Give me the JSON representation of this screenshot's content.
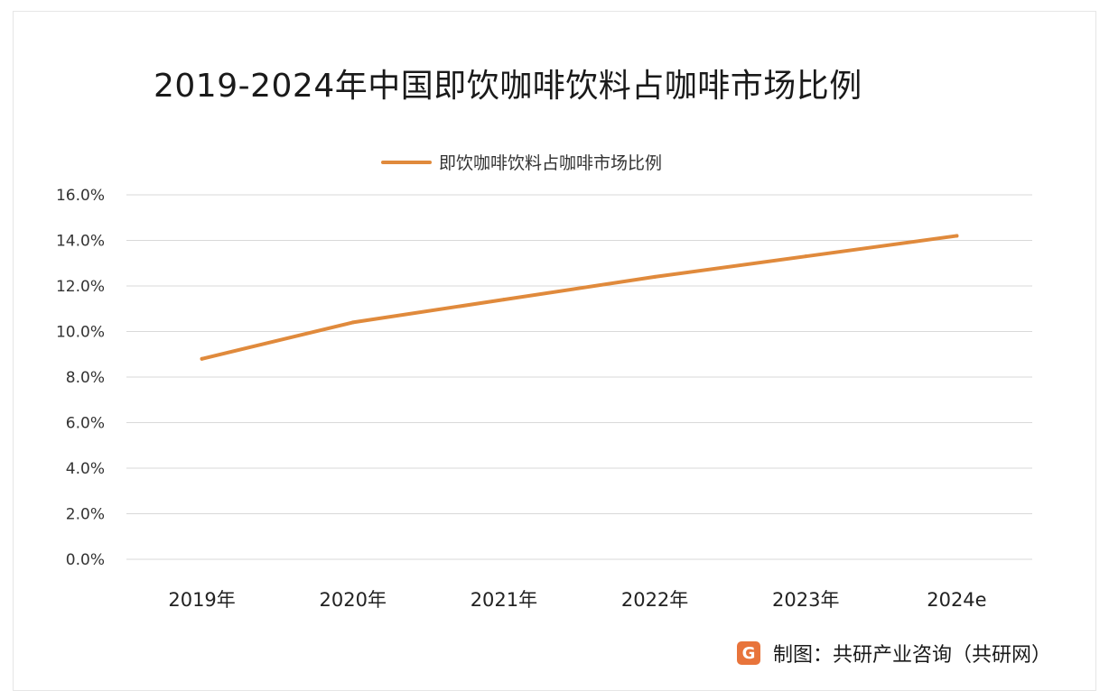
{
  "chart_data": {
    "type": "line",
    "title": "2019-2024年中国即饮咖啡饮料占咖啡市场比例",
    "categories": [
      "2019年",
      "2020年",
      "2021年",
      "2022年",
      "2023年",
      "2024e"
    ],
    "series": [
      {
        "name": "即饮咖啡饮料占咖啡市场比例",
        "values": [
          8.8,
          10.4,
          11.4,
          12.4,
          13.3,
          14.2
        ],
        "color": "#e08a3c"
      }
    ],
    "yticks": [
      "0.0%",
      "2.0%",
      "4.0%",
      "6.0%",
      "8.0%",
      "10.0%",
      "12.0%",
      "14.0%",
      "16.0%"
    ],
    "ylim": [
      0,
      16
    ],
    "ytick_step": 2,
    "xlabel": "",
    "ylabel": "",
    "grid": true,
    "legend": "top-center"
  },
  "footer": {
    "text": "制图：共研产业咨询（共研网）",
    "logo_letter": "G"
  },
  "colors": {
    "line": "#e08a3c",
    "grid": "#d9d9d9",
    "logo": "#e8743b"
  }
}
